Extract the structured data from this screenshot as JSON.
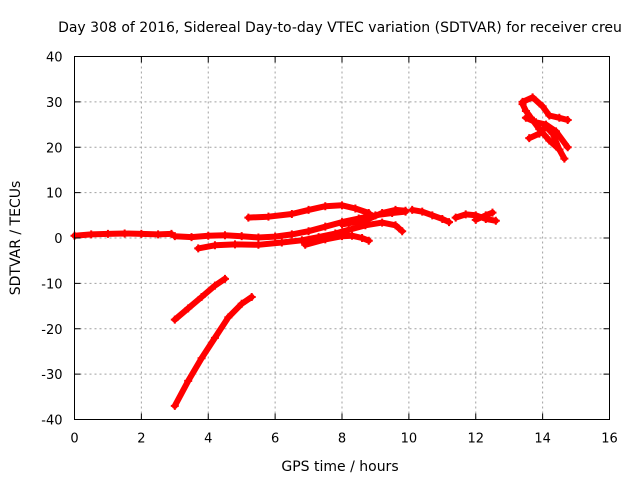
{
  "chart_data": {
    "type": "scatter",
    "title": "Day 308 of 2016, Sidereal Day-to-day VTEC variation (SDTVAR) for receiver creu",
    "xlabel": "GPS time / hours",
    "ylabel": "SDTVAR / TECUs",
    "xlim": [
      0,
      16
    ],
    "ylim": [
      -40,
      40
    ],
    "xticks": [
      0,
      2,
      4,
      6,
      8,
      10,
      12,
      14,
      16
    ],
    "yticks": [
      -40,
      -30,
      -20,
      -10,
      0,
      10,
      20,
      30,
      40
    ],
    "xtick_labels": [
      "0",
      "2",
      "4",
      "6",
      "8",
      "10",
      "12",
      "14",
      "16"
    ],
    "ytick_labels": [
      "-40",
      "-30",
      "-20",
      "-10",
      "0",
      "10",
      "20",
      "30",
      "40"
    ],
    "grid": true,
    "marker": "plus",
    "color": "#ff0000",
    "series": [
      {
        "points": [
          [
            0.0,
            0.5
          ],
          [
            0.5,
            0.8
          ],
          [
            1.0,
            0.9
          ],
          [
            1.5,
            1.0
          ],
          [
            2.0,
            0.9
          ],
          [
            2.5,
            0.8
          ],
          [
            2.9,
            0.9
          ]
        ]
      },
      {
        "points": [
          [
            3.0,
            0.4
          ],
          [
            3.5,
            0.2
          ],
          [
            4.0,
            0.5
          ],
          [
            4.5,
            0.6
          ],
          [
            5.0,
            0.4
          ],
          [
            5.5,
            0.1
          ],
          [
            6.0,
            0.3
          ],
          [
            6.5,
            0.8
          ],
          [
            7.0,
            1.5
          ],
          [
            7.5,
            2.5
          ],
          [
            8.0,
            3.5
          ],
          [
            8.5,
            4.3
          ],
          [
            9.0,
            5.0
          ],
          [
            9.5,
            5.5
          ],
          [
            9.9,
            5.8
          ]
        ]
      },
      {
        "points": [
          [
            3.7,
            -2.3
          ],
          [
            4.2,
            -1.6
          ],
          [
            4.8,
            -1.4
          ],
          [
            5.5,
            -1.5
          ],
          [
            6.2,
            -1.0
          ],
          [
            6.8,
            -0.5
          ],
          [
            7.3,
            0.2
          ],
          [
            7.8,
            1.0
          ],
          [
            8.2,
            1.8
          ],
          [
            8.7,
            2.8
          ],
          [
            9.2,
            3.4
          ],
          [
            9.6,
            2.8
          ],
          [
            9.8,
            1.5
          ]
        ]
      },
      {
        "points": [
          [
            5.2,
            4.5
          ],
          [
            5.8,
            4.7
          ],
          [
            6.5,
            5.3
          ],
          [
            7.0,
            6.2
          ],
          [
            7.5,
            7.0
          ],
          [
            8.0,
            7.2
          ],
          [
            8.4,
            6.5
          ],
          [
            8.8,
            5.5
          ]
        ]
      },
      {
        "points": [
          [
            6.9,
            -1.5
          ],
          [
            7.5,
            -0.3
          ],
          [
            8.0,
            0.4
          ],
          [
            8.3,
            0.5
          ],
          [
            8.6,
            0.0
          ],
          [
            8.8,
            -0.6
          ]
        ]
      },
      {
        "points": [
          [
            8.0,
            3.0
          ],
          [
            8.4,
            3.5
          ],
          [
            8.8,
            4.2
          ],
          [
            9.2,
            5.5
          ],
          [
            9.6,
            6.2
          ],
          [
            9.9,
            6.0
          ]
        ]
      },
      {
        "points": [
          [
            10.1,
            6.2
          ],
          [
            10.4,
            5.8
          ],
          [
            10.7,
            5.0
          ],
          [
            11.0,
            4.2
          ],
          [
            11.2,
            3.5
          ]
        ]
      },
      {
        "points": [
          [
            11.4,
            4.5
          ],
          [
            11.7,
            5.2
          ],
          [
            12.0,
            5.0
          ],
          [
            12.3,
            4.2
          ],
          [
            12.6,
            3.8
          ]
        ]
      },
      {
        "points": [
          [
            12.0,
            4.0
          ],
          [
            12.3,
            5.0
          ],
          [
            12.5,
            5.6
          ]
        ]
      },
      {
        "points": [
          [
            13.4,
            30.0
          ],
          [
            13.7,
            31.0
          ],
          [
            14.0,
            29.0
          ],
          [
            14.2,
            27.0
          ],
          [
            14.5,
            26.5
          ],
          [
            14.75,
            26.0
          ]
        ]
      },
      {
        "points": [
          [
            13.5,
            26.5
          ],
          [
            13.8,
            25.5
          ],
          [
            14.1,
            25.0
          ],
          [
            14.4,
            23.5
          ],
          [
            14.75,
            20.0
          ]
        ]
      },
      {
        "points": [
          [
            13.6,
            22.0
          ],
          [
            13.9,
            23.0
          ],
          [
            14.1,
            24.5
          ],
          [
            14.3,
            23.0
          ],
          [
            14.5,
            19.5
          ],
          [
            14.65,
            17.5
          ]
        ]
      },
      {
        "points": [
          [
            13.4,
            29.5
          ],
          [
            13.5,
            28.0
          ],
          [
            13.65,
            26.5
          ],
          [
            13.9,
            24.0
          ],
          [
            14.2,
            21.5
          ],
          [
            14.5,
            19.5
          ]
        ]
      },
      {
        "points": [
          [
            3.0,
            -18.0
          ],
          [
            3.4,
            -15.5
          ],
          [
            3.8,
            -13.0
          ],
          [
            4.2,
            -10.5
          ],
          [
            4.5,
            -9.0
          ]
        ]
      },
      {
        "points": [
          [
            3.0,
            -37.0
          ],
          [
            3.4,
            -31.5
          ],
          [
            3.8,
            -26.5
          ],
          [
            4.2,
            -22.0
          ],
          [
            4.6,
            -17.5
          ],
          [
            5.0,
            -14.5
          ],
          [
            5.3,
            -13.0
          ]
        ]
      }
    ]
  }
}
